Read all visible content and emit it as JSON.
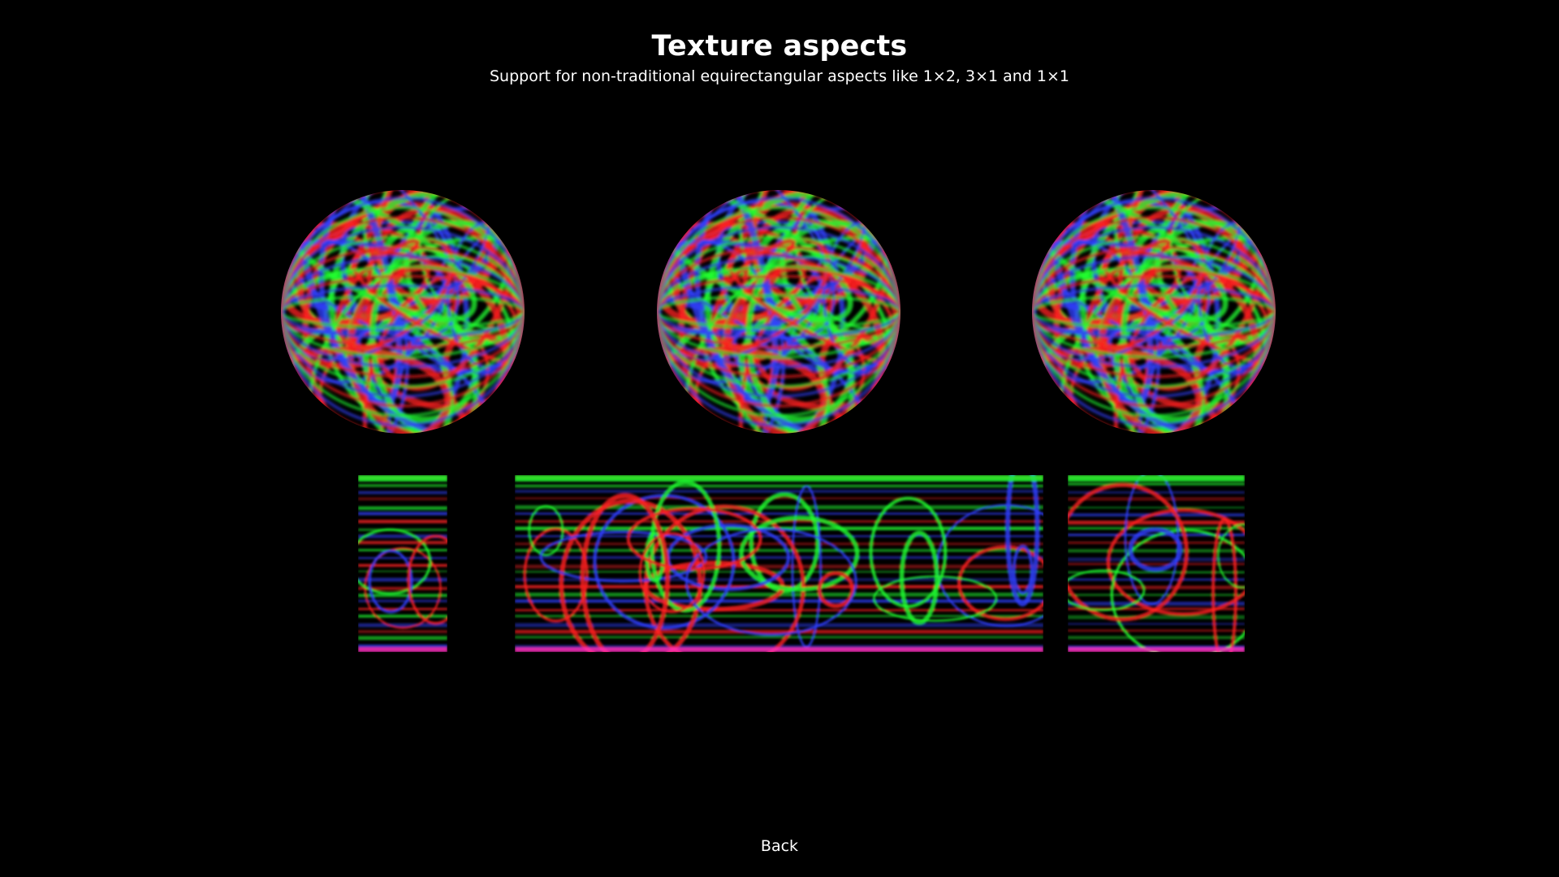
{
  "header": {
    "title": "Texture aspects",
    "subtitle": "Support for non-traditional equirectangular aspects like 1×2, 3×1 and 1×1"
  },
  "spheres": [
    {
      "name": "sphere-1x2"
    },
    {
      "name": "sphere-3x1"
    },
    {
      "name": "sphere-1x1"
    }
  ],
  "textures": [
    {
      "aspect": "1×2"
    },
    {
      "aspect": "3×1"
    },
    {
      "aspect": "1×1"
    }
  ],
  "footer": {
    "back_label": "Back"
  },
  "colors": {
    "background": "#000000",
    "text": "#ffffff",
    "red": "#ff2020",
    "green": "#20ff30",
    "blue": "#3040ff"
  }
}
